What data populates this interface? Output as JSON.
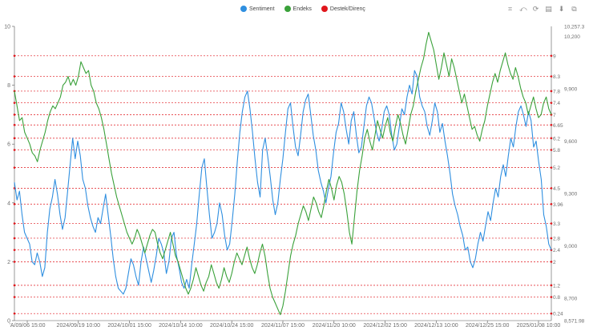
{
  "legend": {
    "sentiment": "Sentiment",
    "endeks": "Endeks",
    "destek": "Destek/Direnç"
  },
  "colors": {
    "sentiment": "#2f8fe0",
    "endeks": "#3aa13a",
    "destek": "#e0161c",
    "grid": "#d9d9d9",
    "axis": "#555555"
  },
  "toolbox": [
    "zoom-icon",
    "zoom-reset-icon",
    "restore-icon",
    "data-view-icon",
    "save-image-icon",
    "crop-icon"
  ],
  "chart_data": {
    "type": "line",
    "x_labels": [
      "'A/09/06 15:00",
      "2024/09/19 10:00",
      "2024/10/01 15:00",
      "2024/10/14 10:00",
      "2024/10/24 15:00",
      "2024/11/07 15:00",
      "2024/11/20 10:00",
      "2024/12/02 15:00",
      "2024/12/13 10:00",
      "2024/12/25 15:00",
      "2025/01/08 10:00"
    ],
    "y_left": {
      "min": 0,
      "max": 10,
      "ticks": [
        "0",
        "2",
        "4",
        "6",
        "8",
        "10"
      ]
    },
    "y_right": {
      "min": 8571.98,
      "max": 10257.3,
      "ticks": [
        {
          "label": "8,571.98",
          "value": 8571.98
        },
        {
          "label": "8,700",
          "value": 8700
        },
        {
          "label": "9,000",
          "value": 9000
        },
        {
          "label": "9,300",
          "value": 9300
        },
        {
          "label": "9,600",
          "value": 9600
        },
        {
          "label": "9,900",
          "value": 9900
        },
        {
          "label": "10,200",
          "value": 10200
        },
        {
          "label": "10,257.3",
          "value": 10257.3
        }
      ]
    },
    "support_resistance": [
      "0.24",
      "0.8",
      "1.2",
      "2",
      "2.4",
      "2.8",
      "3.3",
      "3.96",
      "4.5",
      "5.2",
      "5.8",
      "6.2",
      "6.65",
      "7",
      "7.4",
      "7.8",
      "8.3",
      "9"
    ],
    "series": [
      {
        "name": "Sentiment",
        "values": [
          4.7,
          4.1,
          4.4,
          3.6,
          3.0,
          2.8,
          2.6,
          2.0,
          1.9,
          2.3,
          2.0,
          1.5,
          1.8,
          3.0,
          3.8,
          4.2,
          4.8,
          4.3,
          3.6,
          3.1,
          3.5,
          4.4,
          5.3,
          6.2,
          5.5,
          6.1,
          5.6,
          4.8,
          4.5,
          3.9,
          3.5,
          3.2,
          3.0,
          3.5,
          3.3,
          3.8,
          4.3,
          3.6,
          2.9,
          2.1,
          1.5,
          1.1,
          1.0,
          0.9,
          1.1,
          1.6,
          2.1,
          1.9,
          1.5,
          1.2,
          2.0,
          2.5,
          2.1,
          1.7,
          1.3,
          1.7,
          2.2,
          2.8,
          2.6,
          2.3,
          1.6,
          2.0,
          2.8,
          3.0,
          2.2,
          1.8,
          1.3,
          1.1,
          1.4,
          1.1,
          1.9,
          2.6,
          3.3,
          4.3,
          5.2,
          5.5,
          4.5,
          3.6,
          2.8,
          3.0,
          3.3,
          4.0,
          3.6,
          2.9,
          2.4,
          2.6,
          3.4,
          4.3,
          5.4,
          6.4,
          7.1,
          7.6,
          7.8,
          7.2,
          6.4,
          5.5,
          4.7,
          4.2,
          5.8,
          6.2,
          5.6,
          4.9,
          4.1,
          3.6,
          4.0,
          4.8,
          5.5,
          6.4,
          7.2,
          7.4,
          6.6,
          5.9,
          5.6,
          6.3,
          7.1,
          7.5,
          7.7,
          7.0,
          6.3,
          5.8,
          5.1,
          4.7,
          4.4,
          4.0,
          4.5,
          4.9,
          5.7,
          6.4,
          6.7,
          7.4,
          7.1,
          6.5,
          6.0,
          6.8,
          7.1,
          6.3,
          5.7,
          5.9,
          6.6,
          7.3,
          7.6,
          7.4,
          6.9,
          6.4,
          6.1,
          6.5,
          7.1,
          7.3,
          7.0,
          6.3,
          5.8,
          6.0,
          6.6,
          7.2,
          7.0,
          7.6,
          8.0,
          7.7,
          8.5,
          8.3,
          7.6,
          7.3,
          7.1,
          6.6,
          6.3,
          6.8,
          7.4,
          7.1,
          6.4,
          6.7,
          6.1,
          5.6,
          5.0,
          4.3,
          3.9,
          3.6,
          3.2,
          2.9,
          2.4,
          2.5,
          2.0,
          1.8,
          2.1,
          2.6,
          3.0,
          2.7,
          3.2,
          3.7,
          3.4,
          4.0,
          4.5,
          4.2,
          4.9,
          5.3,
          4.9,
          5.6,
          6.2,
          5.9,
          6.6,
          7.1,
          7.3,
          7.0,
          6.6,
          7.1,
          6.8,
          5.9,
          6.1,
          5.4,
          4.8,
          3.6,
          3.2,
          2.6,
          2.4
        ]
      },
      {
        "name": "Endeks",
        "values": [
          7.8,
          7.3,
          6.8,
          6.9,
          6.4,
          6.2,
          6.0,
          5.7,
          5.6,
          5.4,
          5.8,
          6.1,
          6.4,
          6.8,
          7.1,
          7.3,
          7.2,
          7.4,
          7.6,
          8.0,
          8.1,
          8.3,
          8.0,
          8.2,
          8.0,
          8.3,
          8.8,
          8.6,
          8.4,
          8.5,
          8.0,
          7.8,
          7.4,
          7.2,
          6.9,
          6.5,
          6.0,
          5.5,
          5.0,
          4.6,
          4.2,
          3.9,
          3.6,
          3.3,
          3.0,
          2.8,
          2.6,
          2.8,
          3.1,
          2.9,
          2.6,
          2.3,
          2.6,
          2.9,
          3.1,
          3.0,
          2.6,
          2.3,
          2.1,
          2.4,
          2.7,
          3.0,
          2.6,
          2.2,
          2.0,
          1.7,
          1.4,
          1.1,
          0.9,
          1.1,
          1.4,
          1.8,
          1.5,
          1.2,
          1.0,
          1.3,
          1.5,
          1.9,
          1.6,
          1.3,
          1.1,
          1.4,
          1.8,
          1.5,
          1.3,
          1.6,
          2.0,
          2.3,
          2.1,
          1.9,
          2.2,
          2.5,
          2.1,
          1.8,
          1.6,
          1.9,
          2.3,
          2.6,
          2.2,
          1.6,
          1.1,
          0.8,
          0.6,
          0.4,
          0.2,
          0.5,
          1.0,
          1.6,
          2.2,
          2.6,
          2.9,
          3.3,
          3.6,
          3.9,
          3.7,
          3.4,
          3.8,
          4.2,
          4.0,
          3.7,
          3.5,
          3.9,
          4.4,
          4.8,
          4.5,
          4.1,
          4.6,
          4.9,
          4.7,
          4.3,
          3.7,
          3.0,
          2.6,
          3.5,
          4.4,
          5.1,
          5.6,
          6.2,
          6.5,
          6.1,
          5.8,
          6.3,
          6.8,
          6.5,
          6.2,
          6.6,
          6.9,
          6.4,
          6.1,
          6.6,
          7.0,
          6.7,
          6.3,
          6.0,
          6.5,
          7.0,
          7.3,
          7.8,
          8.2,
          8.6,
          8.9,
          9.4,
          9.8,
          9.5,
          9.2,
          8.7,
          8.2,
          8.6,
          9.1,
          8.7,
          8.3,
          8.9,
          8.6,
          8.2,
          7.8,
          7.4,
          7.7,
          7.3,
          6.9,
          6.5,
          6.6,
          6.3,
          6.1,
          6.5,
          6.8,
          7.3,
          7.7,
          8.1,
          8.4,
          8.1,
          8.5,
          8.8,
          9.1,
          8.7,
          8.4,
          8.2,
          8.6,
          8.3,
          7.9,
          7.6,
          7.4,
          7.0,
          7.3,
          7.6,
          7.2,
          6.9,
          7.0,
          7.4,
          7.6,
          7.2,
          7.0
        ]
      }
    ],
    "grid": false,
    "legend_position": "top-center"
  }
}
